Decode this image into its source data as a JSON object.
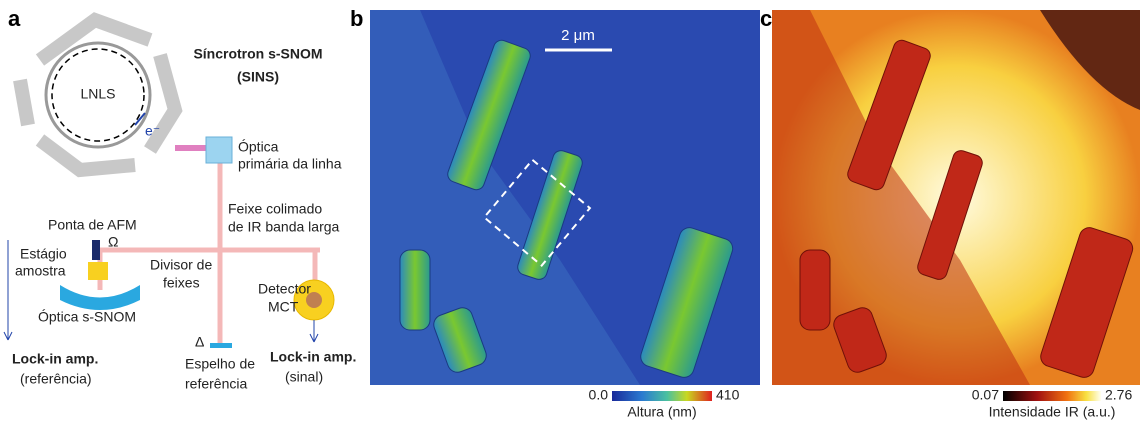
{
  "panel_a": {
    "label": "a",
    "title": "Síncrotron s-SNOM",
    "subtitle": "(SINS)",
    "ring": "LNLS",
    "electron": "e⁻",
    "optics": [
      "Óptica",
      "primária da linha"
    ],
    "beam": [
      "Feixe colimado",
      "de IR banda larga"
    ],
    "tip": "Ponta de AFM",
    "omega": "Ω",
    "stage": [
      "Estágio",
      "amostra"
    ],
    "splitter": [
      "Divisor de",
      "feixes"
    ],
    "detector": [
      "Detector",
      "MCT"
    ],
    "snom_optics": "Óptica s-SNOM",
    "lockin_ref": [
      "Lock-in amp.",
      "(referência)"
    ],
    "delta": "Δ",
    "mirror": [
      "Espelho de",
      "referência"
    ],
    "lockin_sig": [
      "Lock-in amp.",
      "(sinal)"
    ]
  },
  "panel_b": {
    "label": "b",
    "scale_bar": "2 μm",
    "colorbar_min": "0.0",
    "colorbar_max": "410",
    "colorbar_label": "Altura (nm)"
  },
  "panel_c": {
    "label": "c",
    "colorbar_min": "0.07",
    "colorbar_max": "2.76",
    "colorbar_label": "Intensidade IR (a.u.)"
  }
}
